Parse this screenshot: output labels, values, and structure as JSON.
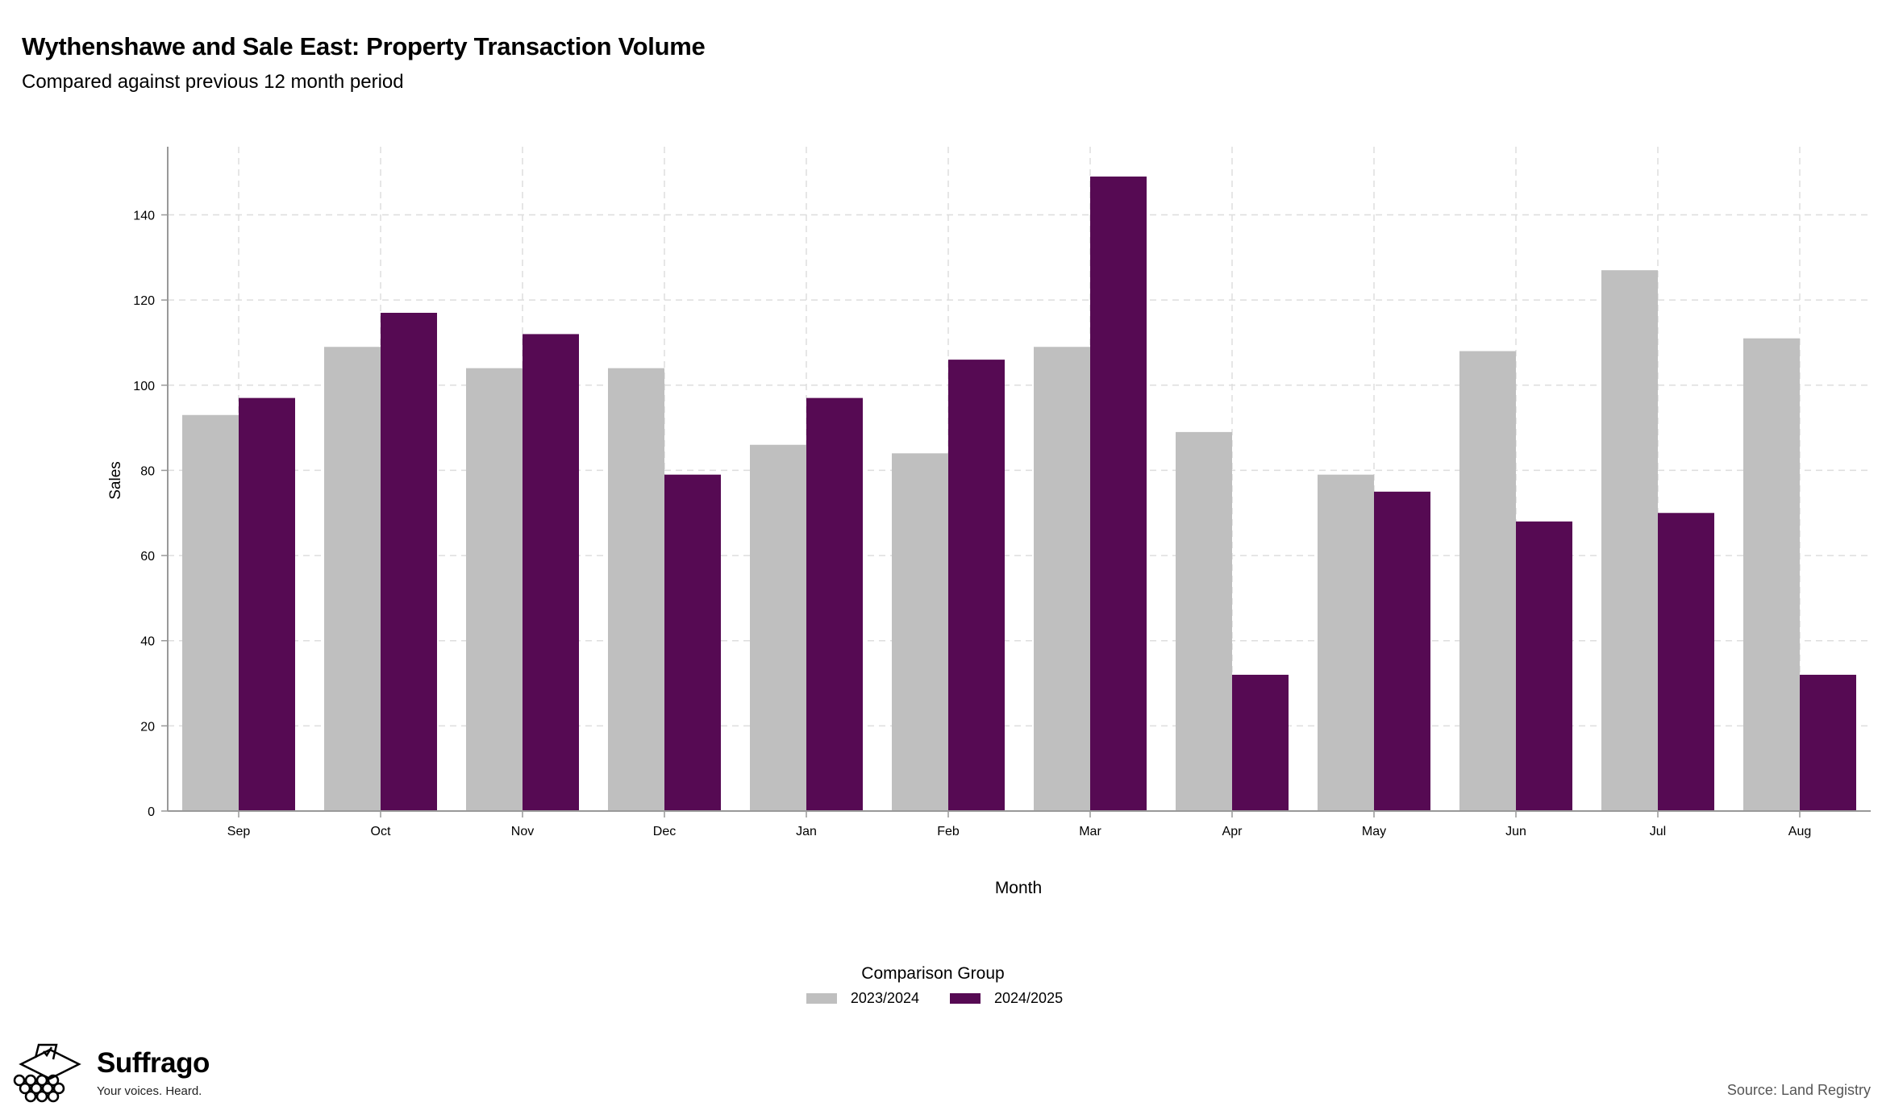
{
  "title": "Wythenshawe and Sale East: Property Transaction Volume",
  "subtitle": "Compared against previous 12 month period",
  "logo": {
    "name": "Suffrago",
    "tagline": "Your voices. Heard."
  },
  "source": "Source: Land Registry",
  "colors": {
    "series_2023_2024": "#bfbfbf",
    "series_2024_2025": "#560a53",
    "grid": "#dddddd",
    "axis": "#999999"
  },
  "chart_data": {
    "type": "bar",
    "xlabel": "Month",
    "ylabel": "Sales",
    "ylim": [
      0,
      156
    ],
    "yticks": [
      0,
      20,
      40,
      60,
      80,
      100,
      120,
      140
    ],
    "grid": true,
    "grid_style": "dashed",
    "legend_placement": "bottom",
    "legend_title": "Comparison Group",
    "categories": [
      "Sep",
      "Oct",
      "Nov",
      "Dec",
      "Jan",
      "Feb",
      "Mar",
      "Apr",
      "May",
      "Jun",
      "Jul",
      "Aug"
    ],
    "series": [
      {
        "name": "2023/2024",
        "color": "#bfbfbf",
        "values": [
          93,
          109,
          104,
          104,
          86,
          84,
          109,
          89,
          79,
          108,
          127,
          111
        ]
      },
      {
        "name": "2024/2025",
        "color": "#560a53",
        "values": [
          97,
          117,
          112,
          79,
          97,
          106,
          149,
          32,
          75,
          68,
          70,
          32
        ]
      }
    ]
  }
}
